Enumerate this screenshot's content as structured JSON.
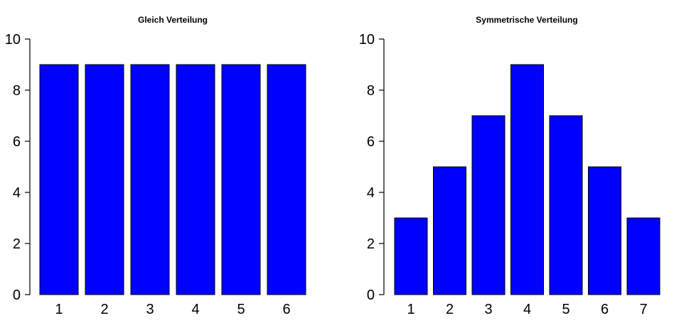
{
  "chart_data": [
    {
      "type": "bar",
      "title": "Gleich Verteilung",
      "xlabel": "",
      "ylabel": "",
      "categories": [
        "1",
        "2",
        "3",
        "4",
        "5",
        "6"
      ],
      "values": [
        9,
        9,
        9,
        9,
        9,
        9
      ],
      "ylim": [
        0,
        10
      ],
      "yticks": [
        "0",
        "2",
        "4",
        "6",
        "8",
        "10"
      ],
      "bar_color": "#0000ff",
      "grid": false
    },
    {
      "type": "bar",
      "title": "Symmetrische Verteilung",
      "xlabel": "",
      "ylabel": "",
      "categories": [
        "1",
        "2",
        "3",
        "4",
        "5",
        "6",
        "7"
      ],
      "values": [
        3,
        5,
        7,
        9,
        7,
        5,
        3
      ],
      "ylim": [
        0,
        10
      ],
      "yticks": [
        "0",
        "2",
        "4",
        "6",
        "8",
        "10"
      ],
      "bar_color": "#0000ff",
      "grid": false
    }
  ]
}
